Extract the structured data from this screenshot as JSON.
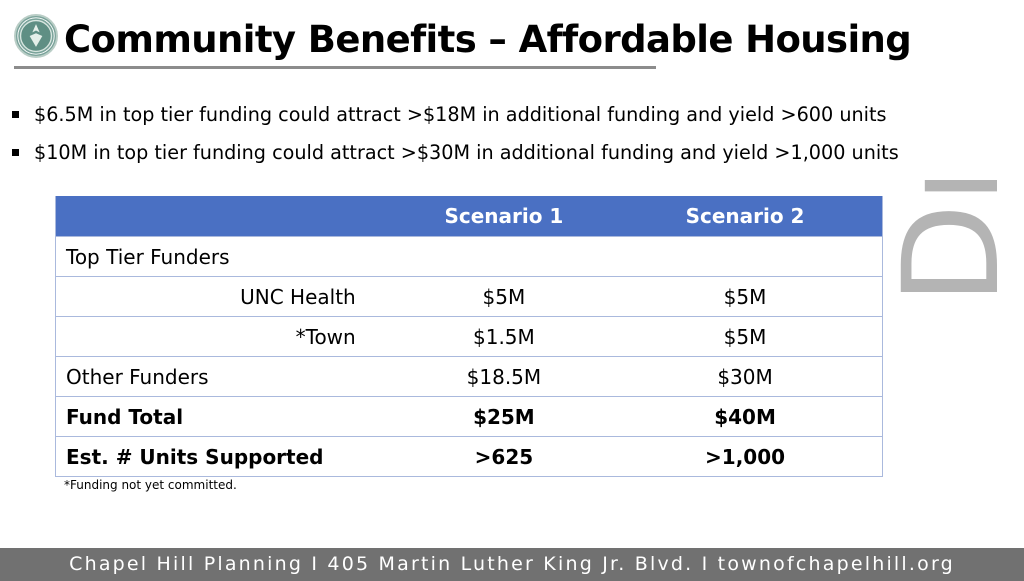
{
  "slide": {
    "title": "Community Benefits – Affordable Housing",
    "bullets": [
      "$6.5M in top tier funding could attract >$18M in additional funding and yield >600 units",
      "$10M in top tier funding could attract >$30M in additional funding and yield >1,000 units"
    ],
    "watermark": "Draft",
    "logo_icon": "town-seal-icon"
  },
  "table": {
    "headers": [
      "",
      "Scenario 1",
      "Scenario 2"
    ],
    "rows": [
      {
        "label": "Top Tier Funders",
        "s1": "",
        "s2": ""
      },
      {
        "label": "UNC Health",
        "s1": "$5M",
        "s2": "$5M"
      },
      {
        "label": "*Town",
        "s1": "$1.5M",
        "s2": "$5M"
      },
      {
        "label": "Other Funders",
        "s1": "$18.5M",
        "s2": "$30M"
      },
      {
        "label": "Fund Total",
        "s1": "$25M",
        "s2": "$40M"
      },
      {
        "label": "Est. # Units Supported",
        "s1": ">625",
        "s2": ">1,000"
      }
    ]
  },
  "footnote": "*Funding not yet committed.",
  "footer": "Chapel Hill Planning I 405 Martin Luther King Jr. Blvd. I townofchapelhill.org",
  "colors": {
    "header_blue": "#4a70c3",
    "footer_gray": "#717171",
    "watermark_gray": "#b4b4b4"
  }
}
